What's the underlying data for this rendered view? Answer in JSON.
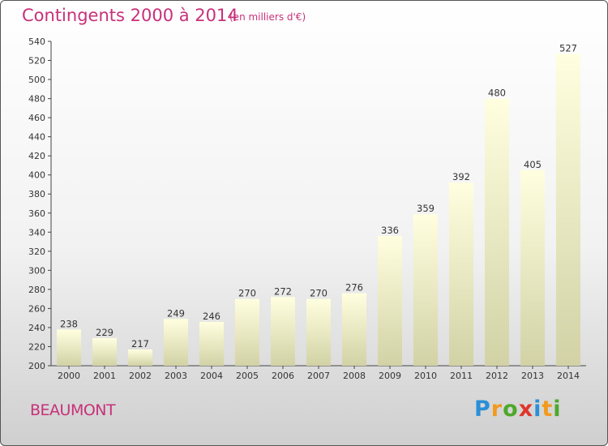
{
  "title": "Contingents 2000 à 2014",
  "subtitle": "(en milliers d'€)",
  "city": "BEAUMONT",
  "logo": {
    "letters": [
      "P",
      "r",
      "o",
      "x",
      "i",
      "t",
      "i"
    ],
    "colors": [
      "#2a8fd6",
      "#f29a1e",
      "#4ea82a",
      "#e0342a",
      "#2a8fd6",
      "#f29a1e",
      "#4ea82a"
    ]
  },
  "colors": {
    "accent": "#c8307a",
    "bar_top": "#ffffe0",
    "bar_bottom": "#d2d2a6"
  },
  "chart_data": {
    "type": "bar",
    "title": "Contingents 2000 à 2014",
    "subtitle": "(en milliers d'€)",
    "categories": [
      "2000",
      "2001",
      "2002",
      "2003",
      "2004",
      "2005",
      "2006",
      "2007",
      "2008",
      "2009",
      "2010",
      "2011",
      "2012",
      "2013",
      "2014"
    ],
    "values": [
      238,
      229,
      217,
      249,
      246,
      270,
      272,
      270,
      276,
      336,
      359,
      392,
      480,
      405,
      527
    ],
    "ylim": [
      200,
      540
    ],
    "yticks": [
      200,
      220,
      240,
      260,
      280,
      300,
      320,
      340,
      360,
      380,
      400,
      420,
      440,
      460,
      480,
      500,
      520,
      540
    ],
    "grid": false,
    "xlabel": "",
    "ylabel": ""
  }
}
